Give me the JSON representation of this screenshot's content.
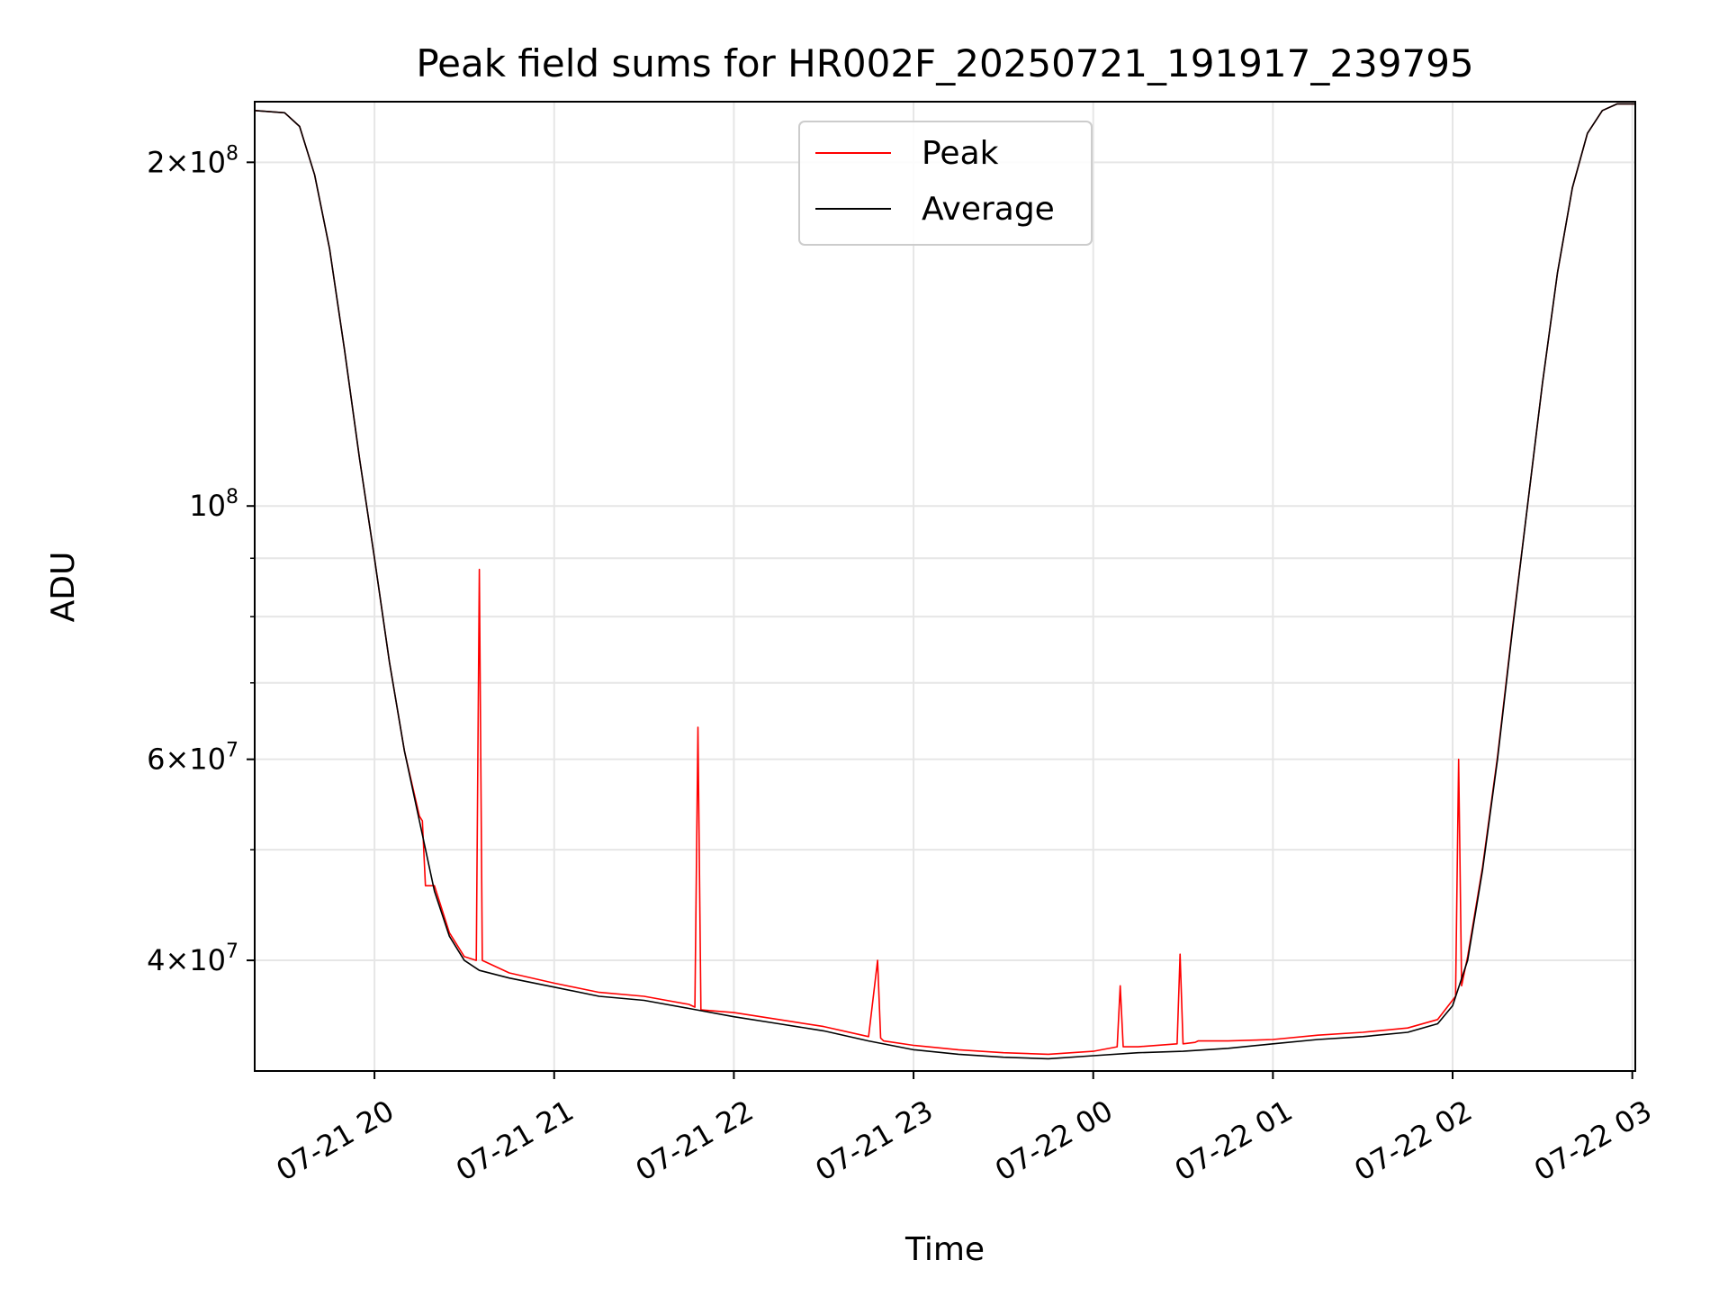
{
  "chart_data": {
    "type": "line",
    "title": "Peak field sums for HR002F_20250721_191917_239795",
    "xlabel": "Time",
    "ylabel": "ADU",
    "yscale": "log",
    "xlim": [
      "2025-07-21 19:20",
      "2025-07-22 03:01"
    ],
    "ylim": [
      32000000,
      226000000
    ],
    "grid": true,
    "legend": {
      "placement": "top-center",
      "entries": [
        "Peak",
        "Average"
      ]
    },
    "colors": {
      "peak": "#ff0000",
      "average": "#000000"
    },
    "x_ticks": [
      "07-21 20",
      "07-21 21",
      "07-21 22",
      "07-21 23",
      "07-22 00",
      "07-22 01",
      "07-22 02",
      "07-22 03"
    ],
    "x_tick_times": [
      "2025-07-21 20:00",
      "2025-07-21 21:00",
      "2025-07-21 22:00",
      "2025-07-21 23:00",
      "2025-07-22 00:00",
      "2025-07-22 01:00",
      "2025-07-22 02:00",
      "2025-07-22 03:00"
    ],
    "y_major_ticks": [
      {
        "value": 40000000,
        "mantissa": "4",
        "exp": "7"
      },
      {
        "value": 60000000,
        "mantissa": "6",
        "exp": "7"
      },
      {
        "value": 100000000,
        "mantissa": "",
        "exp": "8"
      },
      {
        "value": 200000000,
        "mantissa": "2",
        "exp": "8"
      }
    ],
    "y_minor_ticks": [
      50000000,
      70000000,
      80000000,
      90000000
    ],
    "series": [
      {
        "name": "Average",
        "x": [
          "2025-07-21 19:20",
          "2025-07-21 19:30",
          "2025-07-21 19:35",
          "2025-07-21 19:40",
          "2025-07-21 19:45",
          "2025-07-21 19:50",
          "2025-07-21 19:55",
          "2025-07-21 20:00",
          "2025-07-21 20:05",
          "2025-07-21 20:10",
          "2025-07-21 20:15",
          "2025-07-21 20:20",
          "2025-07-21 20:25",
          "2025-07-21 20:30",
          "2025-07-21 20:35",
          "2025-07-21 20:45",
          "2025-07-21 21:00",
          "2025-07-21 21:15",
          "2025-07-21 21:30",
          "2025-07-21 21:45",
          "2025-07-21 22:00",
          "2025-07-21 22:15",
          "2025-07-21 22:30",
          "2025-07-21 22:45",
          "2025-07-21 23:00",
          "2025-07-21 23:15",
          "2025-07-21 23:30",
          "2025-07-21 23:45",
          "2025-07-22 00:00",
          "2025-07-22 00:15",
          "2025-07-22 00:30",
          "2025-07-22 00:45",
          "2025-07-22 01:00",
          "2025-07-22 01:15",
          "2025-07-22 01:30",
          "2025-07-22 01:45",
          "2025-07-22 01:55",
          "2025-07-22 02:00",
          "2025-07-22 02:05",
          "2025-07-22 02:10",
          "2025-07-22 02:15",
          "2025-07-22 02:20",
          "2025-07-22 02:25",
          "2025-07-22 02:30",
          "2025-07-22 02:35",
          "2025-07-22 02:40",
          "2025-07-22 02:45",
          "2025-07-22 02:50",
          "2025-07-22 02:55",
          "2025-07-22 03:01"
        ],
        "values": [
          222000000,
          221000000,
          215000000,
          195000000,
          168000000,
          137000000,
          110000000,
          90000000,
          73000000,
          61000000,
          53000000,
          46000000,
          42000000,
          40000000,
          39200000,
          38600000,
          37900000,
          37200000,
          36900000,
          36300000,
          35700000,
          35200000,
          34700000,
          34000000,
          33400000,
          33100000,
          32900000,
          32800000,
          33000000,
          33200000,
          33300000,
          33500000,
          33800000,
          34100000,
          34300000,
          34600000,
          35200000,
          36500000,
          40000000,
          48000000,
          60000000,
          78000000,
          100000000,
          128000000,
          160000000,
          190000000,
          212000000,
          222000000,
          225000000,
          225000000
        ]
      },
      {
        "name": "Peak",
        "x": [
          "2025-07-21 19:20",
          "2025-07-21 19:30",
          "2025-07-21 19:35",
          "2025-07-21 19:40",
          "2025-07-21 19:45",
          "2025-07-21 19:50",
          "2025-07-21 19:55",
          "2025-07-21 20:00",
          "2025-07-21 20:05",
          "2025-07-21 20:10",
          "2025-07-21 20:15",
          "2025-07-21 20:16",
          "2025-07-21 20:17",
          "2025-07-21 20:20",
          "2025-07-21 20:25",
          "2025-07-21 20:30",
          "2025-07-21 20:34",
          "2025-07-21 20:35",
          "2025-07-21 20:36",
          "2025-07-21 20:45",
          "2025-07-21 21:00",
          "2025-07-21 21:15",
          "2025-07-21 21:30",
          "2025-07-21 21:45",
          "2025-07-21 21:47",
          "2025-07-21 21:48",
          "2025-07-21 21:49",
          "2025-07-21 22:00",
          "2025-07-21 22:15",
          "2025-07-21 22:30",
          "2025-07-21 22:45",
          "2025-07-21 22:48",
          "2025-07-21 22:49",
          "2025-07-21 22:50",
          "2025-07-21 23:00",
          "2025-07-21 23:15",
          "2025-07-21 23:30",
          "2025-07-21 23:45",
          "2025-07-22 00:00",
          "2025-07-22 00:08",
          "2025-07-22 00:09",
          "2025-07-22 00:10",
          "2025-07-22 00:15",
          "2025-07-22 00:28",
          "2025-07-22 00:29",
          "2025-07-22 00:30",
          "2025-07-22 00:34",
          "2025-07-22 00:35",
          "2025-07-22 00:36",
          "2025-07-22 00:45",
          "2025-07-22 01:00",
          "2025-07-22 01:15",
          "2025-07-22 01:30",
          "2025-07-22 01:45",
          "2025-07-22 01:55",
          "2025-07-22 02:01",
          "2025-07-22 02:02",
          "2025-07-22 02:03",
          "2025-07-22 02:05",
          "2025-07-22 02:10",
          "2025-07-22 02:15",
          "2025-07-22 02:20",
          "2025-07-22 02:25",
          "2025-07-22 02:30",
          "2025-07-22 02:35",
          "2025-07-22 02:40",
          "2025-07-22 02:45",
          "2025-07-22 02:50",
          "2025-07-22 02:55",
          "2025-07-22 03:01"
        ],
        "values": [
          222000000,
          221000000,
          215000000,
          195000000,
          168000000,
          137000000,
          110000000,
          90000000,
          73000000,
          61000000,
          53500000,
          53000000,
          46500000,
          46500000,
          42300000,
          40300000,
          40000000,
          88000000,
          40000000,
          39000000,
          38200000,
          37500000,
          37200000,
          36600000,
          36400000,
          64000000,
          36200000,
          36000000,
          35500000,
          35000000,
          34300000,
          40000000,
          34200000,
          34000000,
          33700000,
          33400000,
          33200000,
          33100000,
          33300000,
          33600000,
          38000000,
          33600000,
          33600000,
          33800000,
          40500000,
          33800000,
          33900000,
          34000000,
          34000000,
          34000000,
          34100000,
          34400000,
          34600000,
          34900000,
          35500000,
          37200000,
          60000000,
          38000000,
          40300000,
          48300000,
          60300000,
          78300000,
          100000000,
          128000000,
          160000000,
          190000000,
          212000000,
          222000000,
          225000000,
          225000000
        ]
      }
    ]
  }
}
